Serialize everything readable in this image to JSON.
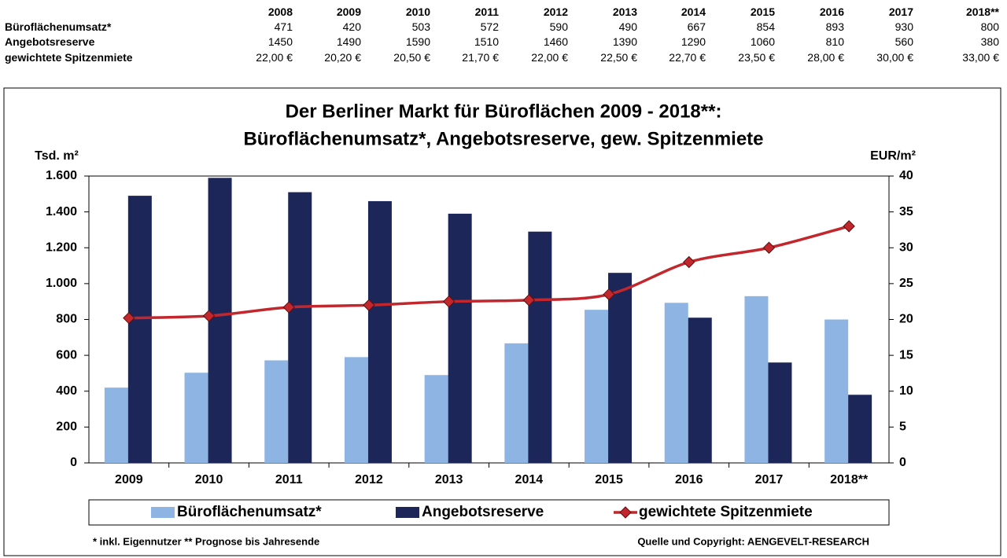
{
  "table": {
    "header": [
      "2008",
      "2009",
      "2010",
      "2011",
      "2012",
      "2013",
      "2014",
      "2015",
      "2016",
      "2017",
      "2018**"
    ],
    "rows": [
      {
        "label": "Büroflächenumsatz*",
        "cells": [
          471,
          420,
          503,
          572,
          590,
          490,
          667,
          854,
          893,
          930,
          800
        ]
      },
      {
        "label": "Angebotsreserve",
        "cells": [
          1450,
          1490,
          1590,
          1510,
          1460,
          1390,
          1290,
          1060,
          810,
          560,
          380
        ]
      },
      {
        "label": "gewichtete Spitzenmiete",
        "cells": [
          "22,00 €",
          "20,20 €",
          "20,50 €",
          "21,70 €",
          "22,00 €",
          "22,50 €",
          "22,70 €",
          "23,50 €",
          "28,00 €",
          "30,00 €",
          "33,00 €"
        ]
      }
    ]
  },
  "chart_data": {
    "type": "bar",
    "title": [
      "Der Berliner Markt für Büroflächen 2009 - 2018**:",
      "Büroflächenumsatz*, Angebotsreserve, gew. Spitzenmiete"
    ],
    "y_label": "Tsd. m²",
    "y2_label": "EUR/m²",
    "categories": [
      "2009",
      "2010",
      "2011",
      "2012",
      "2013",
      "2014",
      "2015",
      "2016",
      "2017",
      "2018**"
    ],
    "series": [
      {
        "name": "Büroflächenumsatz*",
        "type": "bar",
        "color": "#8db4e2",
        "values": [
          420,
          503,
          572,
          590,
          490,
          667,
          854,
          893,
          930,
          800
        ]
      },
      {
        "name": "Angebotsreserve",
        "type": "bar",
        "color": "#1c2659",
        "values": [
          1490,
          1590,
          1510,
          1460,
          1390,
          1290,
          1060,
          810,
          560,
          380
        ]
      },
      {
        "name": "gewichtete Spitzenmiete",
        "type": "line",
        "axis": "y2",
        "color": "#c1272d",
        "values": [
          20.2,
          20.5,
          21.7,
          22,
          22.5,
          22.7,
          23.5,
          28,
          30,
          33
        ]
      }
    ],
    "ylim": [
      0,
      1600
    ],
    "yticks": [
      0,
      200,
      400,
      600,
      800,
      {
        "value": 1000,
        "label": "1.000"
      },
      {
        "value": 1200,
        "label": "1.200"
      },
      {
        "value": 1400,
        "label": "1.400"
      },
      {
        "value": 1600,
        "label": "1.600"
      }
    ],
    "y2lim": [
      0,
      40
    ],
    "y2ticks": [
      0,
      5,
      10,
      15,
      20,
      25,
      30,
      35,
      40
    ],
    "grid": false,
    "legend": "bottom",
    "footnote": "* inkl. Eigennutzer ** Prognose bis Jahresende",
    "source": "Quelle und Copyright: AENGEVELT-RESEARCH"
  }
}
